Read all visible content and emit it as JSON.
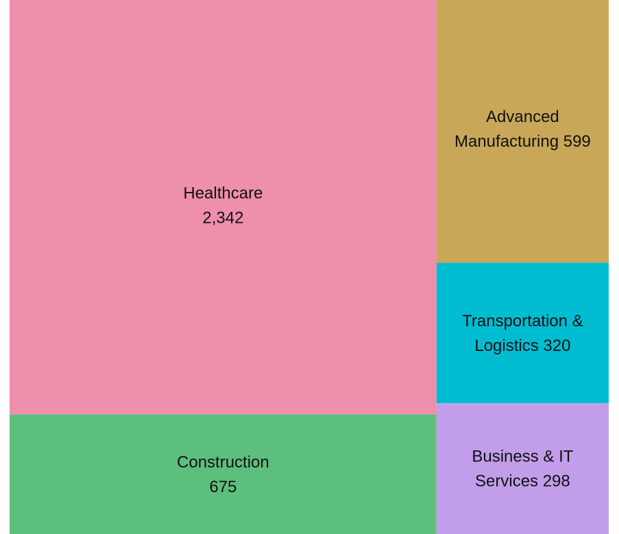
{
  "chart_data": {
    "type": "treemap",
    "title": "",
    "tiles": [
      {
        "name": "Healthcare",
        "value": 2342,
        "label_lines": [
          "Healthcare",
          "2,342"
        ],
        "color": "#ee8fab"
      },
      {
        "name": "Construction",
        "value": 675,
        "label_lines": [
          "Construction",
          "675"
        ],
        "color": "#5dbf7e"
      },
      {
        "name": "Advanced Manufacturing",
        "value": 599,
        "label_lines": [
          "Advanced",
          "Manufacturing 599"
        ],
        "color": "#c8a758"
      },
      {
        "name": "Transportation & Logistics",
        "value": 320,
        "label_lines": [
          "Transportation &",
          "Logistics 320"
        ],
        "color": "#00bcd1"
      },
      {
        "name": "Business & IT Services",
        "value": 298,
        "label_lines": [
          "Business & IT",
          "Services 298"
        ],
        "color": "#c19dea"
      }
    ]
  }
}
